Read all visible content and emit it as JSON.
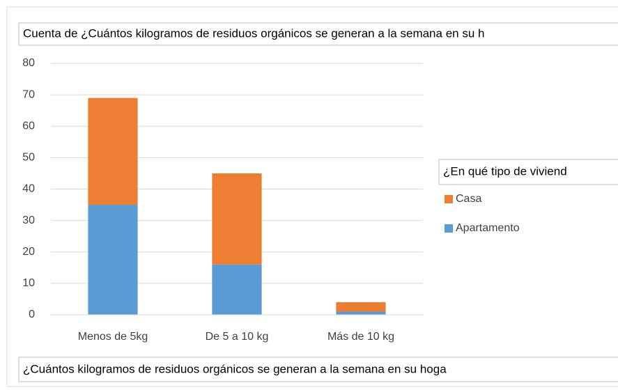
{
  "chart_data": {
    "type": "stacked_bar",
    "title": "Cuenta de ¿Cuántos kilogramos de residuos orgánicos se generan a la semana en su h",
    "x_label": "¿Cuántos kilogramos de residuos orgánicos se generan a la semana en su hoga",
    "legend_title": "¿En qué tipo de viviend",
    "categories": [
      "Menos de 5kg",
      "De 5 a 10 kg",
      "Más de 10 kg"
    ],
    "series": [
      {
        "name": "Apartamento",
        "color": "#5b9bd5",
        "values": [
          35,
          16,
          1
        ]
      },
      {
        "name": "Casa",
        "color": "#ed7d31",
        "values": [
          34,
          29,
          3
        ]
      }
    ],
    "ylim": [
      0,
      80
    ],
    "yticks": [
      0,
      10,
      20,
      30,
      40,
      50,
      60,
      70,
      80
    ],
    "grid": true,
    "legend": "right"
  }
}
